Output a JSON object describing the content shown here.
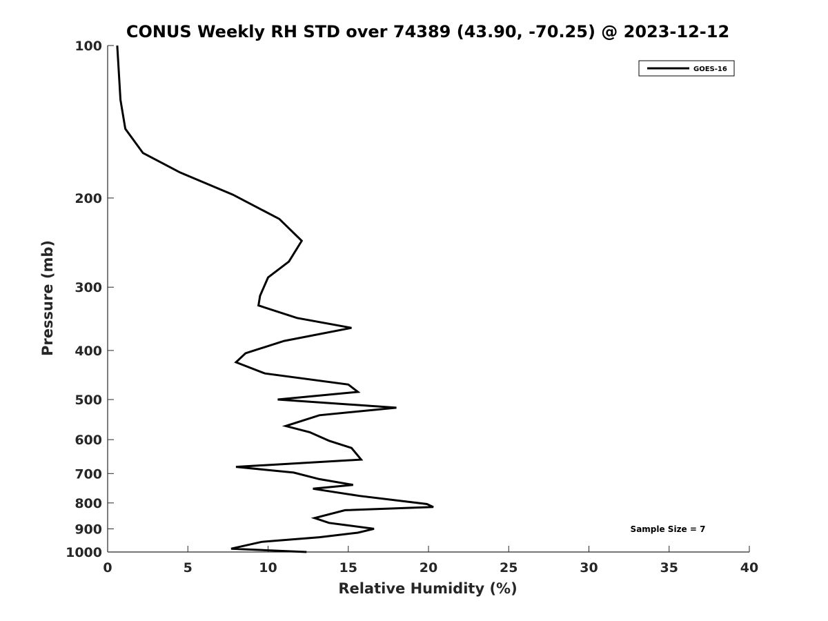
{
  "chart_data": {
    "type": "line",
    "title": "CONUS Weekly RH STD over 74389 (43.90, -70.25) @ 2023-12-12",
    "xlabel": "Relative Humidity (%)",
    "ylabel": "Pressure (mb)",
    "xlim": [
      0,
      40
    ],
    "ylim": [
      100,
      1000
    ],
    "yscale": "log",
    "y_reversed": true,
    "xticks": [
      0,
      5,
      10,
      15,
      20,
      25,
      30,
      35,
      40
    ],
    "yticks": [
      100,
      200,
      300,
      400,
      500,
      600,
      700,
      800,
      900,
      1000
    ],
    "grid": false,
    "legend": {
      "placement": "top-right",
      "entries": [
        "GOES-16"
      ]
    },
    "annotation": "Sample Size = 7",
    "series": [
      {
        "name": "GOES-16",
        "color": "#000000",
        "points": [
          [
            12.4,
            1000
          ],
          [
            7.7,
            985
          ],
          [
            9.6,
            955
          ],
          [
            13.2,
            935
          ],
          [
            15.6,
            916
          ],
          [
            16.6,
            900
          ],
          [
            13.8,
            876
          ],
          [
            12.9,
            857
          ],
          [
            14.8,
            827
          ],
          [
            20.3,
            815
          ],
          [
            19.9,
            804
          ],
          [
            15.7,
            775
          ],
          [
            12.8,
            750
          ],
          [
            15.3,
            737
          ],
          [
            13.2,
            718
          ],
          [
            11.6,
            697
          ],
          [
            8.0,
            679
          ],
          [
            15.8,
            657
          ],
          [
            15.2,
            623
          ],
          [
            13.8,
            603
          ],
          [
            12.6,
            580
          ],
          [
            11.1,
            564
          ],
          [
            13.2,
            537
          ],
          [
            18.0,
            519
          ],
          [
            10.6,
            500
          ],
          [
            15.6,
            483
          ],
          [
            15.0,
            467
          ],
          [
            9.8,
            444
          ],
          [
            8.0,
            422
          ],
          [
            8.6,
            405
          ],
          [
            11.0,
            383
          ],
          [
            15.2,
            361
          ],
          [
            11.8,
            345
          ],
          [
            9.4,
            326
          ],
          [
            9.5,
            312
          ],
          [
            10.0,
            287
          ],
          [
            11.3,
            267
          ],
          [
            12.1,
            243
          ],
          [
            10.7,
            220
          ],
          [
            7.8,
            197
          ],
          [
            4.5,
            178
          ],
          [
            2.2,
            163
          ],
          [
            1.1,
            146
          ],
          [
            0.8,
            128
          ],
          [
            0.6,
            100
          ]
        ]
      }
    ]
  }
}
